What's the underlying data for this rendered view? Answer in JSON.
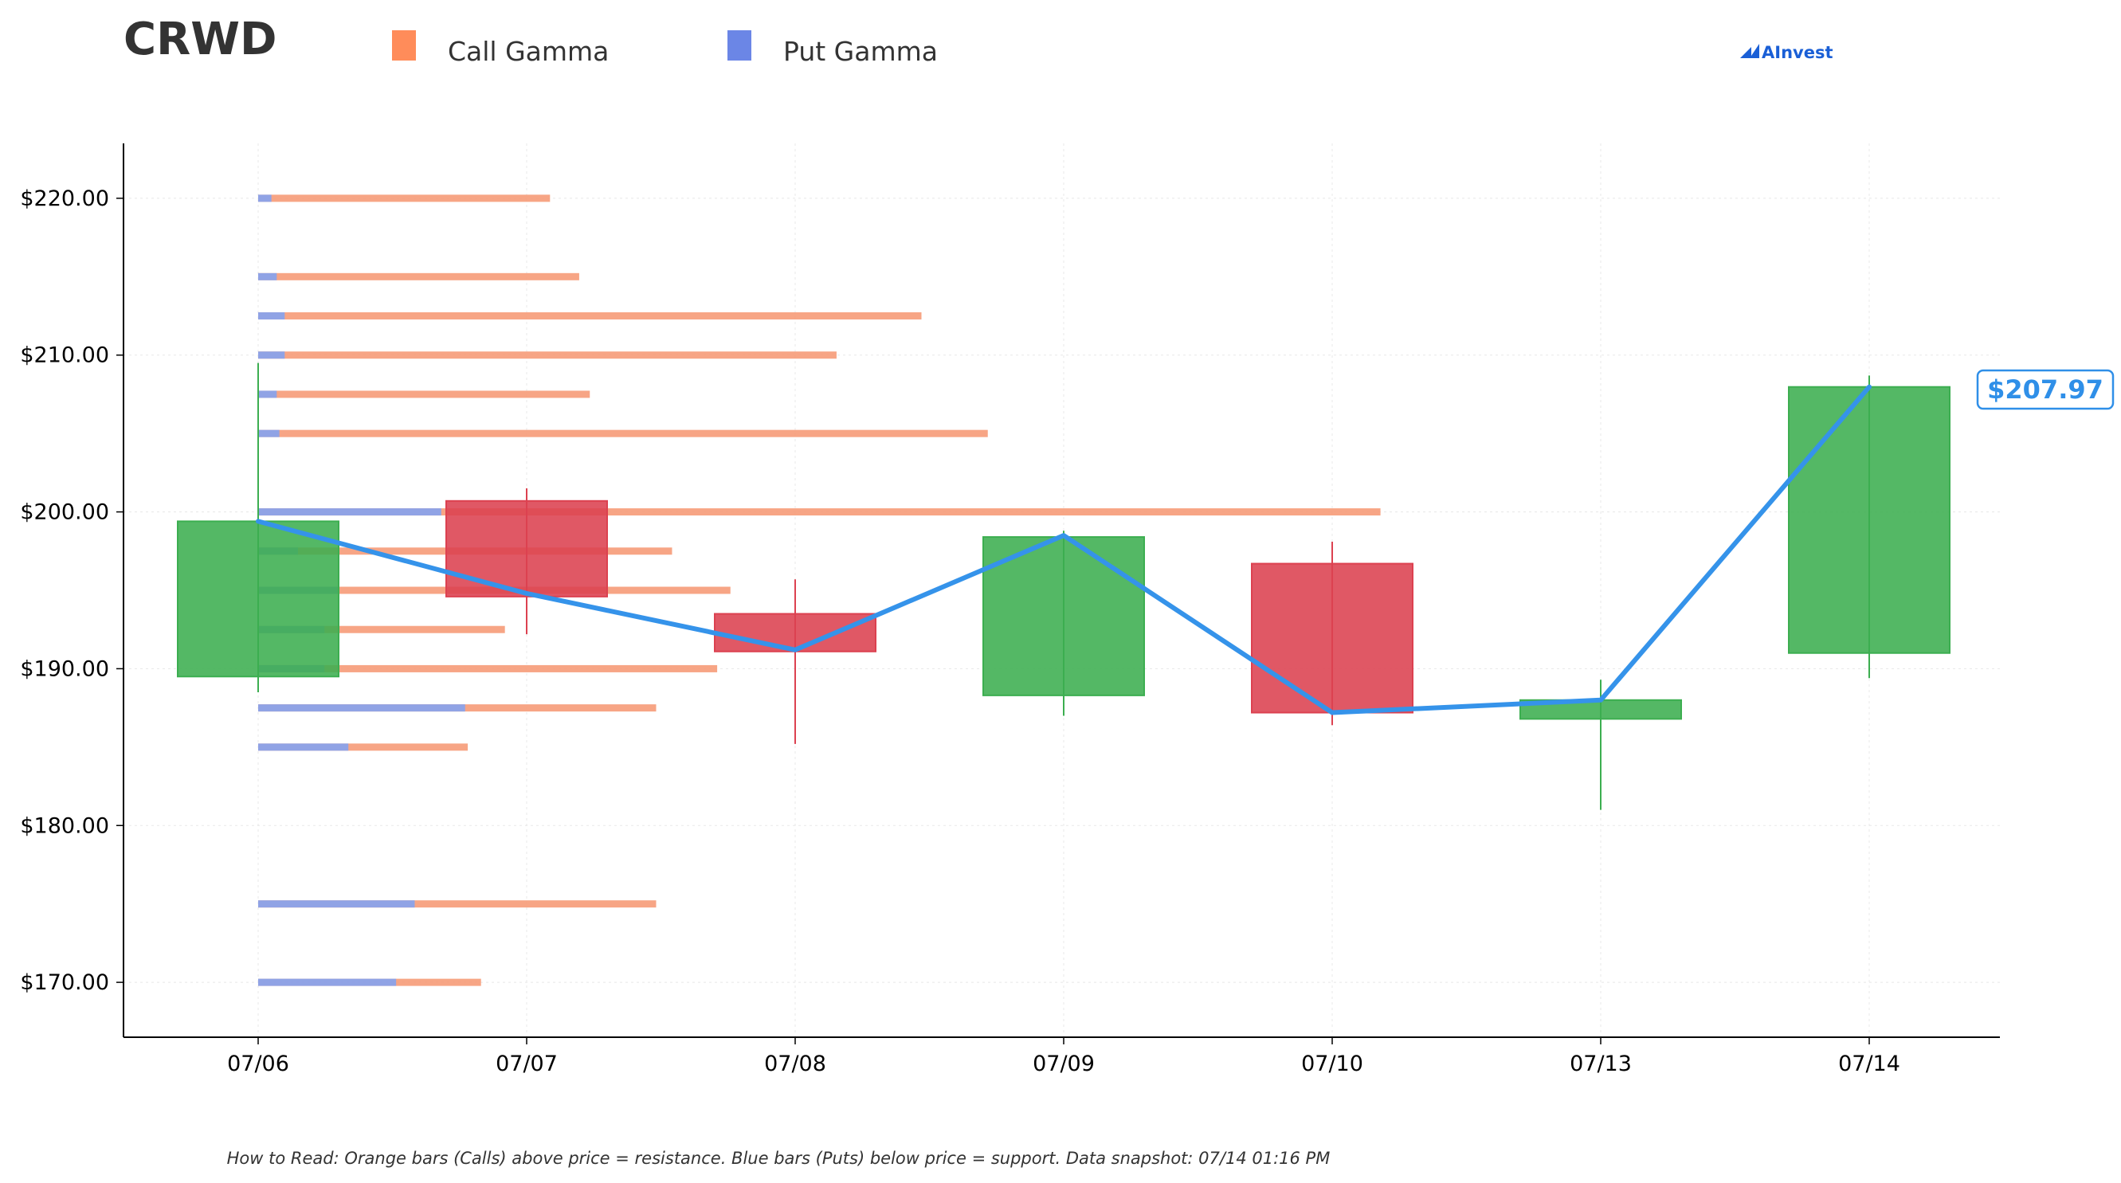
{
  "header": {
    "ticker": "CRWD",
    "logo_text": "AInvest"
  },
  "legend": [
    {
      "label": "Call Gamma",
      "color": "#ff8c5a"
    },
    {
      "label": "Put Gamma",
      "color": "#6b86e6"
    }
  ],
  "footer_note": "How to Read: Orange bars (Calls) above price = resistance. Blue bars (Puts) below price = support. Data snapshot: 07/14 01:16 PM",
  "colors": {
    "up": "#3cae50",
    "down": "#dc4150",
    "line": "#3593ea",
    "call": "#f7a07e",
    "put": "#8aa2ea",
    "grid": "#e8e8e8"
  },
  "chart_data": {
    "type": "candlestick",
    "title": "CRWD",
    "categories": [
      "07/06",
      "07/07",
      "07/08",
      "07/09",
      "07/10",
      "07/13",
      "07/14"
    ],
    "ylim": [
      166.5,
      223.5
    ],
    "yticks": [
      220,
      210,
      200,
      190,
      180,
      170
    ],
    "ytick_labels": [
      "$220.00",
      "$210.00",
      "$200.00",
      "$190.00",
      "$180.00",
      "$170.00"
    ],
    "grid": true,
    "candles": [
      {
        "date": "07/06",
        "open": 189.5,
        "high": 209.5,
        "low": 188.5,
        "close": 199.4
      },
      {
        "date": "07/07",
        "open": 200.7,
        "high": 201.5,
        "low": 192.2,
        "close": 194.6
      },
      {
        "date": "07/08",
        "open": 193.5,
        "high": 195.7,
        "low": 185.2,
        "close": 191.1
      },
      {
        "date": "07/09",
        "open": 188.3,
        "high": 198.8,
        "low": 187.0,
        "close": 198.4
      },
      {
        "date": "07/10",
        "open": 196.7,
        "high": 198.1,
        "low": 186.4,
        "close": 187.2
      },
      {
        "date": "07/13",
        "open": 186.8,
        "high": 189.3,
        "low": 181.0,
        "close": 188.0
      },
      {
        "date": "07/14",
        "open": 191.0,
        "high": 208.7,
        "low": 189.4,
        "close": 207.97
      }
    ],
    "close_line": [
      199.4,
      194.8,
      191.2,
      198.5,
      187.2,
      188.0,
      207.97
    ],
    "last_price_label": "$207.97",
    "gamma_levels": [
      {
        "strike": 220.0,
        "put": 0.5,
        "call": 10.5
      },
      {
        "strike": 215.0,
        "put": 0.7,
        "call": 11.4
      },
      {
        "strike": 212.5,
        "put": 1.0,
        "call": 24.0
      },
      {
        "strike": 210.0,
        "put": 1.0,
        "call": 20.8
      },
      {
        "strike": 207.5,
        "put": 0.7,
        "call": 11.8
      },
      {
        "strike": 205.0,
        "put": 0.8,
        "call": 26.7
      },
      {
        "strike": 200.0,
        "put": 6.9,
        "call": 35.4
      },
      {
        "strike": 197.5,
        "put": 1.5,
        "call": 14.1
      },
      {
        "strike": 195.0,
        "put": 3.0,
        "call": 14.8
      },
      {
        "strike": 192.5,
        "put": 2.5,
        "call": 6.8
      },
      {
        "strike": 190.0,
        "put": 2.5,
        "call": 14.8
      },
      {
        "strike": 187.5,
        "put": 7.8,
        "call": 7.2
      },
      {
        "strike": 185.0,
        "put": 3.4,
        "call": 4.5
      },
      {
        "strike": 175.0,
        "put": 5.9,
        "call": 9.1
      },
      {
        "strike": 170.0,
        "put": 5.2,
        "call": 3.2
      }
    ]
  }
}
